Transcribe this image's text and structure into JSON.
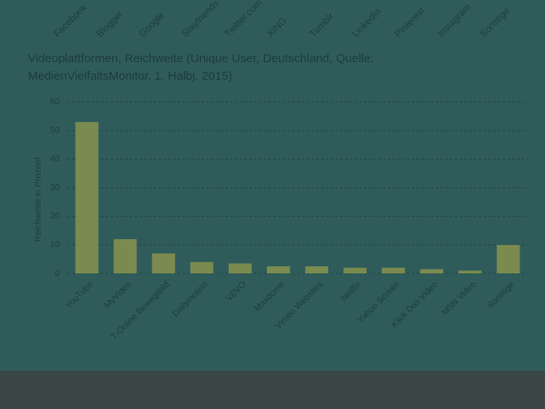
{
  "top_labels": [
    "Facebook",
    "Blogger",
    "Google",
    "Stayfriends",
    "Twitter.com",
    "XING",
    "Tumblr",
    "LinkedIn",
    "Pinterest",
    "Instagram",
    "Sonstige"
  ],
  "chart_data": {
    "type": "bar",
    "title": "Videoplattformen, Reichweite (Unique User, Deutschland, Quelle: MedienVielfaltsMonitor,  1. Halbj. 2015)",
    "y_label": "Reichweite in Prozent",
    "categories": [
      "YouTube",
      "MyVideo",
      "T-Online Bewegtbild",
      "Dailymotion",
      "VEVO",
      "Maxdome",
      "Vimeo Websites",
      "Netflix",
      "Yahoo Screen",
      "Klick Das Video",
      "MSN Video",
      "Sonstige"
    ],
    "values": [
      53,
      12,
      7,
      4,
      3.5,
      2.5,
      2.5,
      2,
      2,
      1.5,
      1,
      10
    ],
    "color": "#7b8b4f",
    "ylim": [
      0,
      60
    ],
    "yticks": [
      0,
      10,
      20,
      30,
      40,
      50,
      60
    ],
    "grid": true
  }
}
